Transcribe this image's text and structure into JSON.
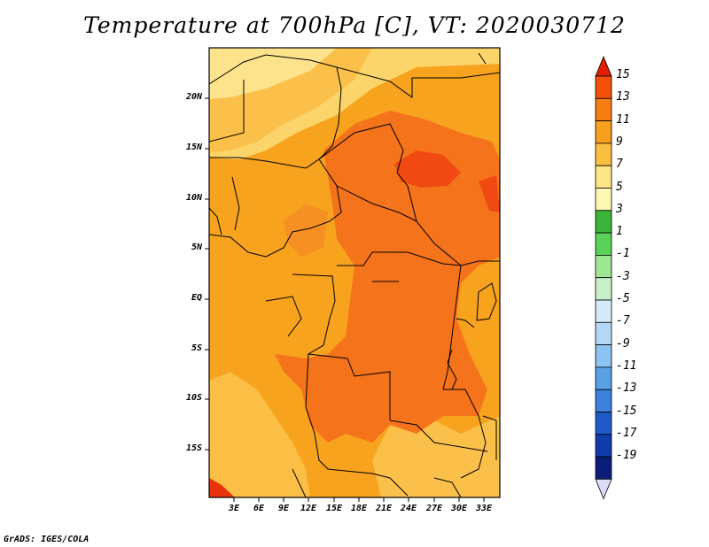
{
  "title": "Temperature at 700hPa [C], VT: 2020030712",
  "credit": "GrADS: IGES/COLA",
  "map": {
    "lat_ticks": [
      "20N",
      "15N",
      "10N",
      "5N",
      "EQ",
      "5S",
      "10S",
      "15S"
    ],
    "lon_ticks": [
      "3E",
      "6E",
      "9E",
      "12E",
      "15E",
      "18E",
      "21E",
      "24E",
      "27E",
      "30E",
      "33E"
    ]
  },
  "colorbar": {
    "labels": [
      "15",
      "13",
      "11",
      "9",
      "7",
      "5",
      "3",
      "1",
      "-1",
      "-3",
      "-5",
      "-7",
      "-9",
      "-11",
      "-13",
      "-15",
      "-17",
      "-19"
    ],
    "colors": [
      "#e01e00",
      "#f5500a",
      "#f57d14",
      "#f79f1e",
      "#fabe41",
      "#fde687",
      "#fff8b4",
      "#3cb43c",
      "#5ad25a",
      "#9fe695",
      "#c8f0c8",
      "#d6ebf8",
      "#b4d7f5",
      "#8cc3f0",
      "#5aa0e6",
      "#3c82dc",
      "#1e5ac8",
      "#0f3caa",
      "#0a1e78",
      "#dcdcf5"
    ]
  }
}
